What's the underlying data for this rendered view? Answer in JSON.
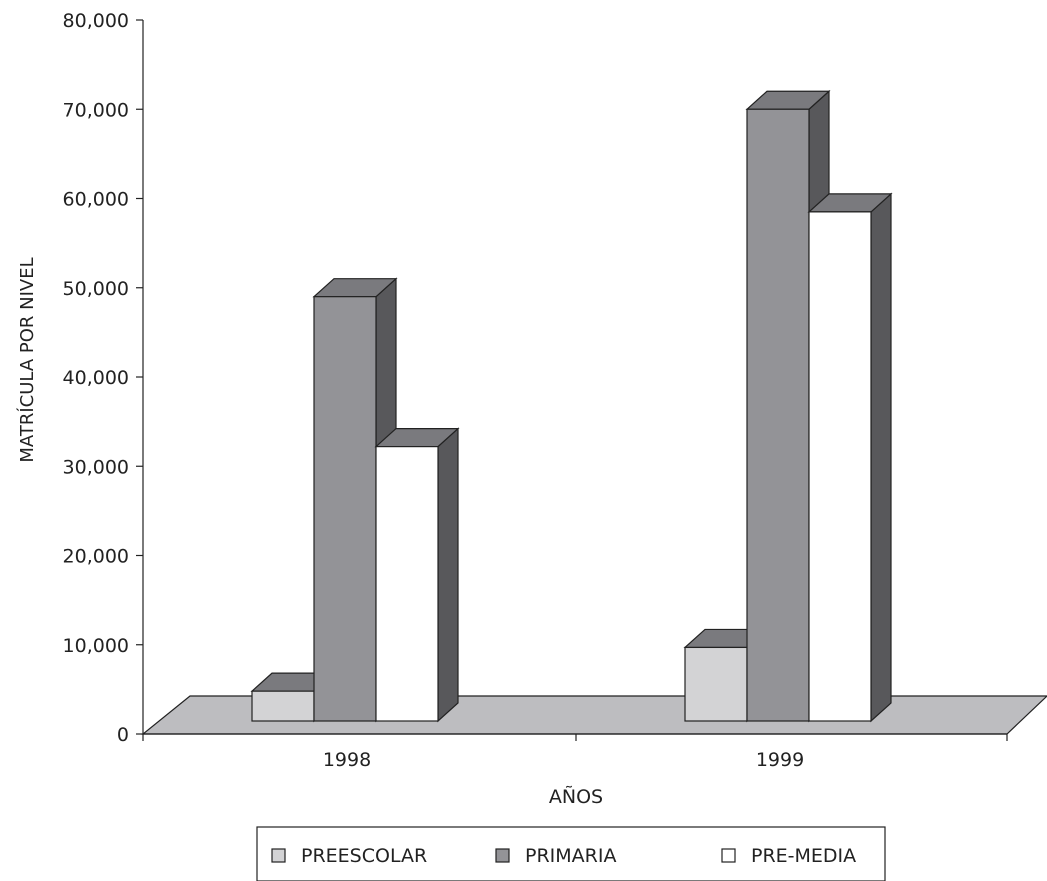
{
  "chart_data": {
    "type": "bar",
    "categories": [
      "1998",
      "1999"
    ],
    "series": [
      {
        "name": "PREESCOLAR",
        "values": [
          4800,
          9700
        ],
        "color": "#d3d3d5"
      },
      {
        "name": "PRIMARIA",
        "values": [
          49000,
          70000
        ],
        "color": "#939397"
      },
      {
        "name": "PRE-MEDIA",
        "values": [
          32200,
          58500
        ],
        "color": "#ffffff"
      }
    ],
    "xlabel": "AÑOS",
    "ylabel": "MATRÍCULA POR NIVEL",
    "ylim": [
      0,
      80000
    ],
    "yticks": [
      "0",
      "10,000",
      "20,000",
      "30,000",
      "40,000",
      "50,000",
      "60,000",
      "70,000",
      "80,000"
    ],
    "legend_position": "bottom",
    "style": "3d-column",
    "floor_color": "#bdbdc0",
    "side_color": "#58585b",
    "top_color": "#7a7a7e"
  }
}
